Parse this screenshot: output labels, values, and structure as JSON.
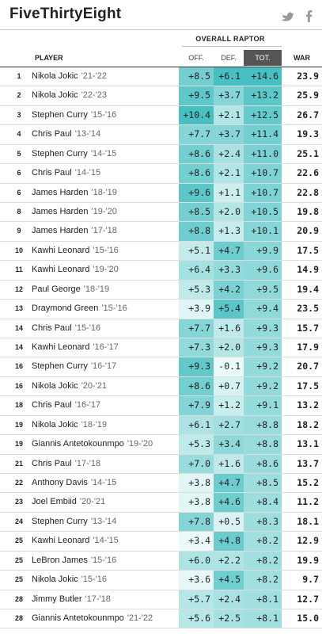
{
  "header": {
    "logo": "FiveThirtyEight"
  },
  "table": {
    "group_title": "OVERALL RAPTOR",
    "columns": {
      "player": "PLAYER",
      "off": "OFF.",
      "def": "DEF.",
      "tot": "TOT.",
      "war": "WAR"
    },
    "rows": [
      {
        "rank": "1",
        "player": "Nikola Jokic",
        "season": "'21-'22",
        "off": "+8.5",
        "def": "+6.1",
        "tot": "+14.6",
        "war": "23.9"
      },
      {
        "rank": "2",
        "player": "Nikola Jokic",
        "season": "'22-'23",
        "off": "+9.5",
        "def": "+3.7",
        "tot": "+13.2",
        "war": "25.9"
      },
      {
        "rank": "3",
        "player": "Stephen Curry",
        "season": "'15-'16",
        "off": "+10.4",
        "def": "+2.1",
        "tot": "+12.5",
        "war": "26.7"
      },
      {
        "rank": "4",
        "player": "Chris Paul",
        "season": "'13-'14",
        "off": "+7.7",
        "def": "+3.7",
        "tot": "+11.4",
        "war": "19.3"
      },
      {
        "rank": "5",
        "player": "Stephen Curry",
        "season": "'14-'15",
        "off": "+8.6",
        "def": "+2.4",
        "tot": "+11.0",
        "war": "25.1"
      },
      {
        "rank": "6",
        "player": "Chris Paul",
        "season": "'14-'15",
        "off": "+8.6",
        "def": "+2.1",
        "tot": "+10.7",
        "war": "22.6"
      },
      {
        "rank": "6",
        "player": "James Harden",
        "season": "'18-'19",
        "off": "+9.6",
        "def": "+1.1",
        "tot": "+10.7",
        "war": "22.8"
      },
      {
        "rank": "8",
        "player": "James Harden",
        "season": "'19-'20",
        "off": "+8.5",
        "def": "+2.0",
        "tot": "+10.5",
        "war": "19.8"
      },
      {
        "rank": "9",
        "player": "James Harden",
        "season": "'17-'18",
        "off": "+8.8",
        "def": "+1.3",
        "tot": "+10.1",
        "war": "20.9"
      },
      {
        "rank": "10",
        "player": "Kawhi Leonard",
        "season": "'15-'16",
        "off": "+5.1",
        "def": "+4.7",
        "tot": "+9.9",
        "war": "17.5"
      },
      {
        "rank": "11",
        "player": "Kawhi Leonard",
        "season": "'19-'20",
        "off": "+6.4",
        "def": "+3.3",
        "tot": "+9.6",
        "war": "14.9"
      },
      {
        "rank": "12",
        "player": "Paul George",
        "season": "'18-'19",
        "off": "+5.3",
        "def": "+4.2",
        "tot": "+9.5",
        "war": "19.4"
      },
      {
        "rank": "13",
        "player": "Draymond Green",
        "season": "'15-'16",
        "off": "+3.9",
        "def": "+5.4",
        "tot": "+9.4",
        "war": "23.5"
      },
      {
        "rank": "14",
        "player": "Chris Paul",
        "season": "'15-'16",
        "off": "+7.7",
        "def": "+1.6",
        "tot": "+9.3",
        "war": "15.7"
      },
      {
        "rank": "14",
        "player": "Kawhi Leonard",
        "season": "'16-'17",
        "off": "+7.3",
        "def": "+2.0",
        "tot": "+9.3",
        "war": "17.9"
      },
      {
        "rank": "16",
        "player": "Stephen Curry",
        "season": "'16-'17",
        "off": "+9.3",
        "def": "-0.1",
        "tot": "+9.2",
        "war": "20.7"
      },
      {
        "rank": "16",
        "player": "Nikola Jokic",
        "season": "'20-'21",
        "off": "+8.6",
        "def": "+0.7",
        "tot": "+9.2",
        "war": "17.5"
      },
      {
        "rank": "18",
        "player": "Chris Paul",
        "season": "'16-'17",
        "off": "+7.9",
        "def": "+1.2",
        "tot": "+9.1",
        "war": "13.2"
      },
      {
        "rank": "19",
        "player": "Nikola Jokic",
        "season": "'18-'19",
        "off": "+6.1",
        "def": "+2.7",
        "tot": "+8.8",
        "war": "18.2"
      },
      {
        "rank": "19",
        "player": "Giannis Antetokounmpo",
        "season": "'19-'20",
        "off": "+5.3",
        "def": "+3.4",
        "tot": "+8.8",
        "war": "13.1"
      },
      {
        "rank": "21",
        "player": "Chris Paul",
        "season": "'17-'18",
        "off": "+7.0",
        "def": "+1.6",
        "tot": "+8.6",
        "war": "13.7"
      },
      {
        "rank": "22",
        "player": "Anthony Davis",
        "season": "'14-'15",
        "off": "+3.8",
        "def": "+4.7",
        "tot": "+8.5",
        "war": "15.2"
      },
      {
        "rank": "23",
        "player": "Joel Embiid",
        "season": "'20-'21",
        "off": "+3.8",
        "def": "+4.6",
        "tot": "+8.4",
        "war": "11.2"
      },
      {
        "rank": "24",
        "player": "Stephen Curry",
        "season": "'13-'14",
        "off": "+7.8",
        "def": "+0.5",
        "tot": "+8.3",
        "war": "18.1"
      },
      {
        "rank": "25",
        "player": "Kawhi Leonard",
        "season": "'14-'15",
        "off": "+3.4",
        "def": "+4.8",
        "tot": "+8.2",
        "war": "12.9"
      },
      {
        "rank": "25",
        "player": "LeBron James",
        "season": "'15-'16",
        "off": "+6.0",
        "def": "+2.2",
        "tot": "+8.2",
        "war": "19.9"
      },
      {
        "rank": "25",
        "player": "Nikola Jokic",
        "season": "'15-'16",
        "off": "+3.6",
        "def": "+4.5",
        "tot": "+8.2",
        "war": "9.7"
      },
      {
        "rank": "28",
        "player": "Jimmy Butler",
        "season": "'17-'18",
        "off": "+5.7",
        "def": "+2.4",
        "tot": "+8.1",
        "war": "12.7"
      },
      {
        "rank": "28",
        "player": "Giannis Antetokounmpo",
        "season": "'21-'22",
        "off": "+5.6",
        "def": "+2.5",
        "tot": "+8.1",
        "war": "15.0"
      }
    ]
  }
}
